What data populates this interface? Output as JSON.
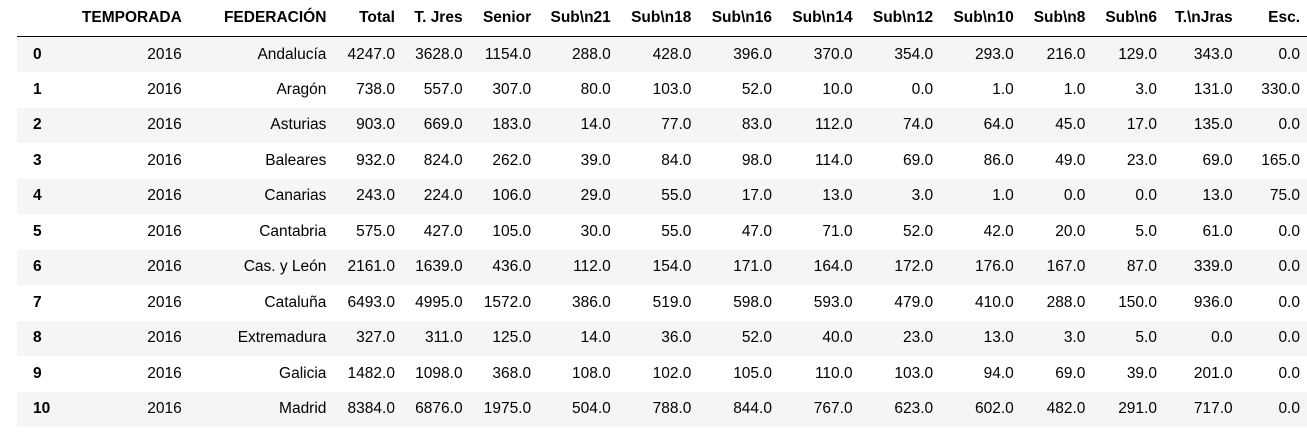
{
  "table": {
    "columns": [
      "TEMPORADA",
      "FEDERACIÓN",
      "Total",
      "T. Jres",
      "Senior",
      "Sub\\n21",
      "Sub\\n18",
      "Sub\\n16",
      "Sub\\n14",
      "Sub\\n12",
      "Sub\\n10",
      "Sub\\n8",
      "Sub\\n6",
      "T.\\nJras",
      "Esc."
    ],
    "rows": [
      {
        "index": "0",
        "cells": [
          "2016",
          "Andalucía",
          "4247.0",
          "3628.0",
          "1154.0",
          "288.0",
          "428.0",
          "396.0",
          "370.0",
          "354.0",
          "293.0",
          "216.0",
          "129.0",
          "343.0",
          "0.0"
        ]
      },
      {
        "index": "1",
        "cells": [
          "2016",
          "Aragón",
          "738.0",
          "557.0",
          "307.0",
          "80.0",
          "103.0",
          "52.0",
          "10.0",
          "0.0",
          "1.0",
          "1.0",
          "3.0",
          "131.0",
          "330.0"
        ]
      },
      {
        "index": "2",
        "cells": [
          "2016",
          "Asturias",
          "903.0",
          "669.0",
          "183.0",
          "14.0",
          "77.0",
          "83.0",
          "112.0",
          "74.0",
          "64.0",
          "45.0",
          "17.0",
          "135.0",
          "0.0"
        ]
      },
      {
        "index": "3",
        "cells": [
          "2016",
          "Baleares",
          "932.0",
          "824.0",
          "262.0",
          "39.0",
          "84.0",
          "98.0",
          "114.0",
          "69.0",
          "86.0",
          "49.0",
          "23.0",
          "69.0",
          "165.0"
        ]
      },
      {
        "index": "4",
        "cells": [
          "2016",
          "Canarias",
          "243.0",
          "224.0",
          "106.0",
          "29.0",
          "55.0",
          "17.0",
          "13.0",
          "3.0",
          "1.0",
          "0.0",
          "0.0",
          "13.0",
          "75.0"
        ]
      },
      {
        "index": "5",
        "cells": [
          "2016",
          "Cantabria",
          "575.0",
          "427.0",
          "105.0",
          "30.0",
          "55.0",
          "47.0",
          "71.0",
          "52.0",
          "42.0",
          "20.0",
          "5.0",
          "61.0",
          "0.0"
        ]
      },
      {
        "index": "6",
        "cells": [
          "2016",
          "Cas. y León",
          "2161.0",
          "1639.0",
          "436.0",
          "112.0",
          "154.0",
          "171.0",
          "164.0",
          "172.0",
          "176.0",
          "167.0",
          "87.0",
          "339.0",
          "0.0"
        ]
      },
      {
        "index": "7",
        "cells": [
          "2016",
          "Cataluña",
          "6493.0",
          "4995.0",
          "1572.0",
          "386.0",
          "519.0",
          "598.0",
          "593.0",
          "479.0",
          "410.0",
          "288.0",
          "150.0",
          "936.0",
          "0.0"
        ]
      },
      {
        "index": "8",
        "cells": [
          "2016",
          "Extremadura",
          "327.0",
          "311.0",
          "125.0",
          "14.0",
          "36.0",
          "52.0",
          "40.0",
          "23.0",
          "13.0",
          "3.0",
          "5.0",
          "0.0",
          "0.0"
        ]
      },
      {
        "index": "9",
        "cells": [
          "2016",
          "Galicia",
          "1482.0",
          "1098.0",
          "368.0",
          "108.0",
          "102.0",
          "105.0",
          "110.0",
          "103.0",
          "94.0",
          "69.0",
          "39.0",
          "201.0",
          "0.0"
        ]
      },
      {
        "index": "10",
        "cells": [
          "2016",
          "Madrid",
          "8384.0",
          "6876.0",
          "1975.0",
          "504.0",
          "788.0",
          "844.0",
          "767.0",
          "623.0",
          "602.0",
          "482.0",
          "291.0",
          "717.0",
          "0.0"
        ]
      }
    ]
  }
}
